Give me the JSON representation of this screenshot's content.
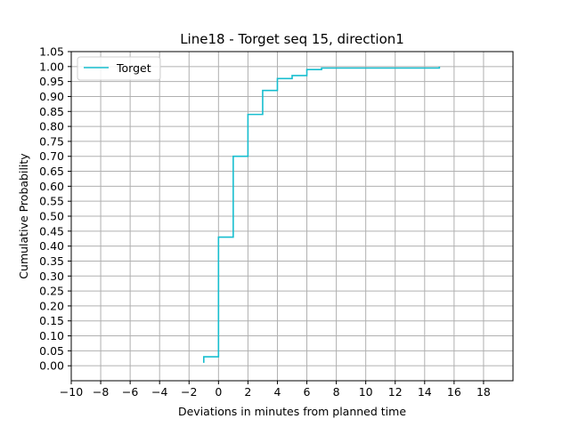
{
  "chart_data": {
    "type": "line",
    "drawstyle": "steps-post",
    "title": "Line18 - Torget seq 15, direction1",
    "xlabel": "Deviations in minutes from planned time",
    "ylabel": "Cumulative Probability",
    "xlim": [
      -10,
      20
    ],
    "ylim": [
      -0.05,
      1.05
    ],
    "xticks": [
      -10,
      -8,
      -6,
      -4,
      -2,
      0,
      2,
      4,
      6,
      8,
      10,
      12,
      14,
      16,
      18
    ],
    "xtick_labels": [
      "−10",
      "−8",
      "−6",
      "−4",
      "−2",
      "0",
      "2",
      "4",
      "6",
      "8",
      "10",
      "12",
      "14",
      "16",
      "18"
    ],
    "yticks": [
      0.0,
      0.05,
      0.1,
      0.15,
      0.2,
      0.25,
      0.3,
      0.35,
      0.4,
      0.45,
      0.5,
      0.55,
      0.6,
      0.65,
      0.7,
      0.75,
      0.8,
      0.85,
      0.9,
      0.95,
      1.0,
      1.05
    ],
    "ytick_labels": [
      "0.00",
      "0.05",
      "0.10",
      "0.15",
      "0.20",
      "0.25",
      "0.30",
      "0.35",
      "0.40",
      "0.45",
      "0.50",
      "0.55",
      "0.60",
      "0.65",
      "0.70",
      "0.75",
      "0.80",
      "0.85",
      "0.90",
      "0.95",
      "1.00",
      "1.05"
    ],
    "grid": true,
    "legend_position": "upper-left",
    "series": [
      {
        "name": "Torget",
        "color": "#17becf",
        "x": [
          -1,
          0,
          1,
          2,
          3,
          4,
          5,
          6,
          7,
          15
        ],
        "y": [
          0.01,
          0.03,
          0.43,
          0.7,
          0.84,
          0.92,
          0.96,
          0.97,
          0.99,
          0.995
        ],
        "post_step_y": [
          0.03,
          0.43,
          0.7,
          0.84,
          0.92,
          0.96,
          0.97,
          0.99,
          0.995,
          1.0
        ]
      }
    ],
    "colors": {
      "grid": "#b0b0b0",
      "axes": "#000000"
    }
  }
}
